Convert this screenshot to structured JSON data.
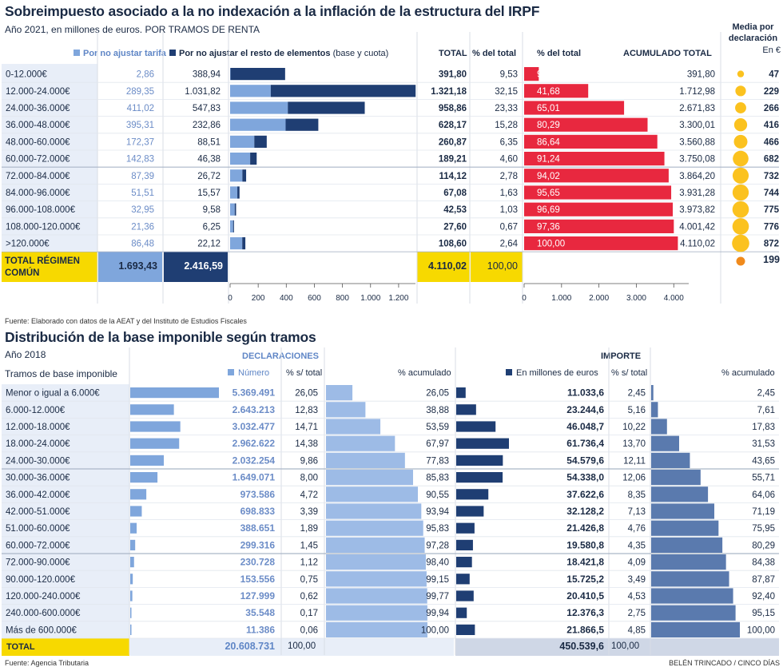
{
  "colors": {
    "light_blue": "#7fa6dc",
    "dark_blue": "#1f3e73",
    "red": "#e8283f",
    "yellow": "#f7d900",
    "orange": "#f08a1c",
    "circle": "#fbc21f",
    "label_bg": "#e8eef8",
    "grey_bg": "#cfd7e6"
  },
  "top": {
    "title": "Sobreimpuesto asociado a la no indexación a la inflación de la estructura del IRPF",
    "subtitle": "Año 2021, en millones de euros. POR TRAMOS DE RENTA",
    "legend_tarifa": "Por no ajustar tarifa",
    "legend_resto": "Por no ajustar el resto de elementos",
    "legend_resto_note": "(base y cuota)",
    "col_total": "TOTAL",
    "col_pct": "% del total",
    "col_pct2": "% del total",
    "col_acum": "ACUMULADO TOTAL",
    "media_title_1": "Media por",
    "media_title_2": "declaración",
    "media_unit": "En €",
    "total_label_1": "TOTAL RÉGIMEN",
    "total_label_2": "COMÚN",
    "total_tarifa": "1.693,43",
    "total_resto": "2.416,59",
    "total_total": "4.110,02",
    "total_pct": "100,00",
    "total_media": "199",
    "source": "Fuente: Elaborado con datos de la AEAT y del Instituto de Estudios Fiscales"
  },
  "bottom": {
    "title": "Distribución de la base imponible según tramos",
    "year": "Año 2018",
    "rows_label": "Tramos de base imponible",
    "declaraciones": "DECLARACIONES",
    "importe": "IMPORTE",
    "numero": "Número",
    "pct_total": "% s/ total",
    "pct_acum": "% acumulado",
    "millones": "En millones de euros",
    "pct_total2": "% s/ total",
    "pct_acum2": "% acumulado",
    "total_label": "TOTAL",
    "total_num": "20.608.731",
    "total_num_pct": "100,00",
    "total_imp": "450.539,6",
    "total_imp_pct": "100,00",
    "source": "Fuente: Agencia Tributaria",
    "credit": "BELÉN TRINCADO / CINCO DÍAS"
  },
  "chart_data": [
    {
      "type": "bar",
      "title": "Sobreimpuesto asociado a la no indexación a la inflación de la estructura del IRPF",
      "categories": [
        "0-12.000€",
        "12.000-24.000€",
        "24.000-36.000€",
        "36.000-48.000€",
        "48.000-60.000€",
        "60.000-72.000€",
        "72.000-84.000€",
        "84.000-96.000€",
        "96.000-108.000€",
        "108.000-120.000€",
        ">120.000€"
      ],
      "series": [
        {
          "name": "Por no ajustar tarifa",
          "values": [
            2.86,
            289.35,
            411.02,
            395.31,
            172.37,
            142.83,
            87.39,
            51.51,
            32.95,
            21.36,
            86.48
          ],
          "labels": [
            "2,86",
            "289,35",
            "411,02",
            "395,31",
            "172,37",
            "142,83",
            "87,39",
            "51,51",
            "32,95",
            "21,36",
            "86,48"
          ]
        },
        {
          "name": "Por no ajustar el resto de elementos (base y cuota)",
          "values": [
            388.94,
            1031.82,
            547.83,
            232.86,
            88.51,
            46.38,
            26.72,
            15.57,
            9.58,
            6.25,
            22.12
          ],
          "labels": [
            "388,94",
            "1.031,82",
            "547,83",
            "232,86",
            "88,51",
            "46,38",
            "26,72",
            "15,57",
            "9,58",
            "6,25",
            "22,12"
          ]
        }
      ],
      "total": {
        "values": [
          391.8,
          1321.18,
          958.86,
          628.17,
          260.87,
          189.21,
          114.12,
          67.08,
          42.53,
          27.6,
          108.6
        ],
        "labels": [
          "391,80",
          "1.321,18",
          "958,86",
          "628,17",
          "260,87",
          "189,21",
          "114,12",
          "67,08",
          "42,53",
          "27,60",
          "108,60"
        ]
      },
      "pct_total": [
        "9,53",
        "32,15",
        "23,33",
        "15,28",
        "6,35",
        "4,60",
        "2,78",
        "1,63",
        "1,03",
        "0,67",
        "2,64"
      ],
      "xticks": [
        "0",
        "200",
        "400",
        "600",
        "800",
        "1.000",
        "1.200"
      ],
      "xlim": [
        0,
        1320
      ]
    },
    {
      "type": "bar",
      "title": "% del total / ACUMULADO TOTAL",
      "pct_labels": [
        "9,53",
        "41,68",
        "65,01",
        "80,29",
        "86,64",
        "91,24",
        "94,02",
        "95,65",
        "96,69",
        "97,36",
        "100,00"
      ],
      "acumulado": {
        "values": [
          391.8,
          1712.98,
          2671.83,
          3300.01,
          3560.88,
          3750.08,
          3864.2,
          3931.28,
          3973.82,
          4001.42,
          4110.02
        ],
        "labels": [
          "391,80",
          "1.712,98",
          "2.671,83",
          "3.300,01",
          "3.560,88",
          "3.750,08",
          "3.864,20",
          "3.931,28",
          "3.973,82",
          "4.001,42",
          "4.110,02"
        ]
      },
      "xticks": [
        "0",
        "1.000",
        "2.000",
        "3.000",
        "4.000"
      ],
      "xlim": [
        0,
        4400
      ]
    },
    {
      "type": "scatter",
      "title": "Media por declaración (En €)",
      "values": [
        47,
        229,
        266,
        416,
        466,
        682,
        732,
        744,
        775,
        776,
        872
      ],
      "labels": [
        "47",
        "229",
        "266",
        "416",
        "466",
        "682",
        "732",
        "744",
        "775",
        "776",
        "872"
      ]
    },
    {
      "type": "bar",
      "title": "Distribución de la base imponible según tramos",
      "categories": [
        "Menor o igual a 6.000€",
        "6.000-12.000€",
        "12.000-18.000€",
        "18.000-24.000€",
        "24.000-30.000€",
        "30.000-36.000€",
        "36.000-42.000€",
        "42.000-51.000€",
        "51.000-60.000€",
        "60.000-72.000€",
        "72.000-90.000€",
        "90.000-120.000€",
        "120.000-240.000€",
        "240.000-600.000€",
        "Más de 600.000€"
      ],
      "declaraciones": {
        "values": [
          5369491,
          2643213,
          3032477,
          2962622,
          2032254,
          1649071,
          973586,
          698833,
          388651,
          299316,
          230728,
          153556,
          127999,
          35548,
          11386
        ],
        "labels": [
          "5.369.491",
          "2.643.213",
          "3.032.477",
          "2.962.622",
          "2.032.254",
          "1.649.071",
          "973.586",
          "698.833",
          "388.651",
          "299.316",
          "230.728",
          "153.556",
          "127.999",
          "35.548",
          "11.386"
        ],
        "pct": [
          "26,05",
          "12,83",
          "14,71",
          "14,38",
          "9,86",
          "8,00",
          "4,72",
          "3,39",
          "1,89",
          "1,45",
          "1,12",
          "0,75",
          "0,62",
          "0,17",
          "0,06"
        ],
        "acum": [
          26.05,
          38.88,
          53.59,
          67.97,
          77.83,
          85.83,
          90.55,
          93.94,
          95.83,
          97.28,
          98.4,
          99.15,
          99.77,
          99.94,
          100.0
        ],
        "acum_labels": [
          "26,05",
          "38,88",
          "53,59",
          "67,97",
          "77,83",
          "85,83",
          "90,55",
          "93,94",
          "95,83",
          "97,28",
          "98,40",
          "99,15",
          "99,77",
          "99,94",
          "100,00"
        ]
      },
      "importe": {
        "values": [
          11033.6,
          23244.6,
          46048.7,
          61736.4,
          54579.6,
          54338.0,
          37622.6,
          32128.2,
          21426.8,
          19580.8,
          18421.8,
          15725.2,
          20410.5,
          12376.3,
          21866.5
        ],
        "labels": [
          "11.033,6",
          "23.244,6",
          "46.048,7",
          "61.736,4",
          "54.579,6",
          "54.338,0",
          "37.622,6",
          "32.128,2",
          "21.426,8",
          "19.580,8",
          "18.421,8",
          "15.725,2",
          "20.410,5",
          "12.376,3",
          "21.866,5"
        ],
        "pct": [
          "2,45",
          "5,16",
          "10,22",
          "13,70",
          "12,11",
          "12,06",
          "8,35",
          "7,13",
          "4,76",
          "4,35",
          "4,09",
          "3,49",
          "4,53",
          "2,75",
          "4,85"
        ],
        "acum": [
          2.45,
          7.61,
          17.83,
          31.53,
          43.65,
          55.71,
          64.06,
          71.19,
          75.95,
          80.29,
          84.38,
          87.87,
          92.4,
          95.15,
          100.0
        ],
        "acum_labels": [
          "2,45",
          "7,61",
          "17,83",
          "31,53",
          "43,65",
          "55,71",
          "64,06",
          "71,19",
          "75,95",
          "80,29",
          "84,38",
          "87,87",
          "92,40",
          "95,15",
          "100,00"
        ]
      }
    }
  ]
}
